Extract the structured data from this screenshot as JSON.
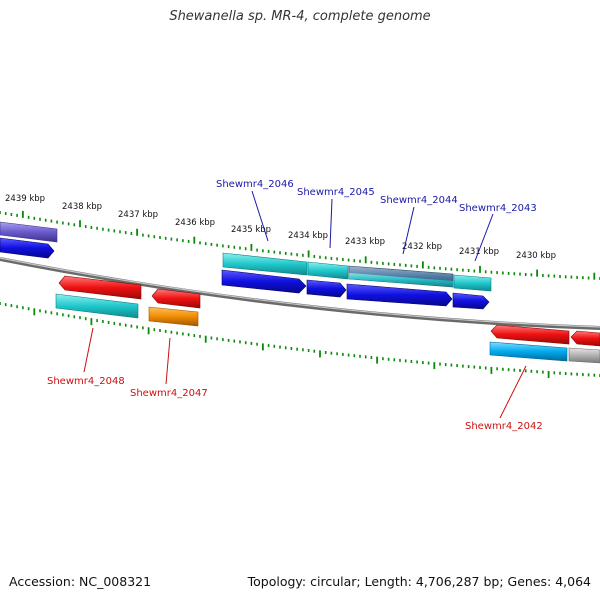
{
  "title": "Shewanella sp. MR-4, complete genome",
  "footer": {
    "accession": "Accession: NC_008321",
    "topology": "Topology: circular; Length: 4,706,287 bp; Genes: 4,064"
  },
  "ruler_labels": [
    "2439 kbp",
    "2438 kbp",
    "2437 kbp",
    "2436 kbp",
    "2435 kbp",
    "2434 kbp",
    "2433 kbp",
    "2432 kbp",
    "2431 kbp",
    "2430 kbp"
  ],
  "genes_top": [
    "Shewmr4_2046",
    "Shewmr4_2045",
    "Shewmr4_2044",
    "Shewmr4_2043"
  ],
  "genes_bottom": [
    "Shewmr4_2048",
    "Shewmr4_2047",
    "Shewmr4_2042"
  ],
  "colors": {
    "blue_label": "#1a1aa8",
    "red_label": "#cc1111",
    "cds_blue": "#1010e0",
    "cds_cyan": "#20c8cc",
    "cds_red": "#ee1111",
    "cds_orange": "#f08c00",
    "cds_purple": "#6a5acd",
    "cds_light_blue": "#00aaee",
    "cds_gray": "#b0b0b0",
    "backbone": "#888888",
    "tick_green": "#0a8a0a"
  }
}
